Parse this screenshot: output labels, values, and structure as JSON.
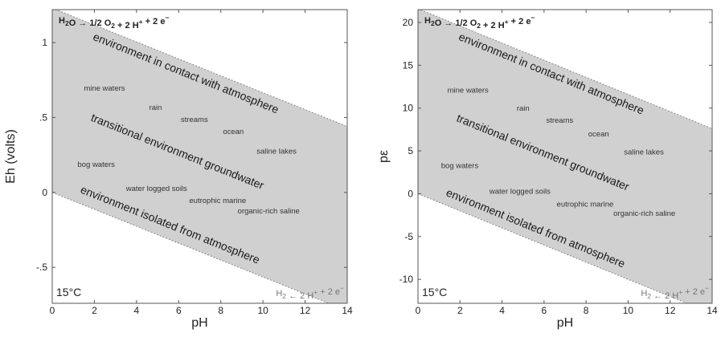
{
  "chart_data": [
    {
      "type": "area",
      "panel": "left",
      "xlabel": "pH",
      "ylabel": "Eh (volts)",
      "xlim": [
        0,
        14
      ],
      "ylim": [
        -0.74,
        1.22
      ],
      "x_ticks": [
        0,
        2,
        4,
        6,
        8,
        10,
        12,
        14
      ],
      "x_tick_labels": [
        "0",
        "2",
        "4",
        "6",
        "8",
        "10",
        "12",
        "14"
      ],
      "y_ticks": [
        -0.5,
        0,
        0.5,
        1
      ],
      "y_tick_labels": [
        "-.5",
        "0",
        ".5",
        "1"
      ],
      "grid": false,
      "stability_field": {
        "upper": {
          "x": [
            0,
            14
          ],
          "y": [
            1.23,
            0.44
          ],
          "label": "H2O → 1/2 O2 + 2 H+ + 2 e−"
        },
        "lower": {
          "x": [
            0,
            14
          ],
          "y": [
            0.0,
            -0.79
          ],
          "label": "H2 ← 2 H+ + 2 e−"
        }
      },
      "temperature": "15°C",
      "environment_labels": [
        {
          "text": "environment in contact with atmosphere",
          "pH": 1.9,
          "value": 1.02
        },
        {
          "text": "transitional environment groundwater",
          "pH": 1.8,
          "value": 0.48
        },
        {
          "text": "environment isolated from atmosphere",
          "pH": 1.3,
          "value": 0.0
        }
      ],
      "examples": [
        {
          "text": "mine waters",
          "pH": 1.5,
          "value": 0.68
        },
        {
          "text": "rain",
          "pH": 4.6,
          "value": 0.55
        },
        {
          "text": "streams",
          "pH": 6.1,
          "value": 0.47
        },
        {
          "text": "ocean",
          "pH": 8.1,
          "value": 0.39
        },
        {
          "text": "saline lakes",
          "pH": 9.7,
          "value": 0.26
        },
        {
          "text": "bog waters",
          "pH": 1.2,
          "value": 0.17
        },
        {
          "text": "water logged soils",
          "pH": 3.5,
          "value": 0.01
        },
        {
          "text": "eutrophic marine",
          "pH": 6.5,
          "value": -0.07
        },
        {
          "text": "organic-rich saline",
          "pH": 8.8,
          "value": -0.14
        }
      ]
    },
    {
      "type": "area",
      "panel": "right",
      "xlabel": "pH",
      "ylabel": "pε",
      "xlim": [
        0,
        14
      ],
      "ylim": [
        -12.8,
        21.5
      ],
      "x_ticks": [
        0,
        2,
        4,
        6,
        8,
        10,
        12,
        14
      ],
      "x_tick_labels": [
        "0",
        "2",
        "4",
        "6",
        "8",
        "10",
        "12",
        "14"
      ],
      "y_ticks": [
        -10,
        -5,
        0,
        5,
        10,
        15,
        20
      ],
      "y_tick_labels": [
        "-10",
        "-5",
        "0",
        "5",
        "10",
        "15",
        "20"
      ],
      "grid": false,
      "stability_field": {
        "upper": {
          "x": [
            0,
            14
          ],
          "y": [
            21.6,
            7.6
          ],
          "label": "H2O → 1/2 O2 + 2 H+ + 2 e−"
        },
        "lower": {
          "x": [
            0,
            14
          ],
          "y": [
            0.0,
            -14.0
          ],
          "label": "H2 ← 2 H+ + 2 e−"
        }
      },
      "temperature": "15°C",
      "environment_labels": [
        {
          "text": "environment in contact with atmosphere",
          "pH": 1.9,
          "value": 18.0
        },
        {
          "text": "transitional environment groundwater",
          "pH": 1.8,
          "value": 8.5
        },
        {
          "text": "environment isolated from atmosphere",
          "pH": 1.3,
          "value": -0.2
        }
      ],
      "examples": [
        {
          "text": "mine waters",
          "pH": 1.4,
          "value": 11.8
        },
        {
          "text": "rain",
          "pH": 4.7,
          "value": 9.7
        },
        {
          "text": "streams",
          "pH": 6.1,
          "value": 8.3
        },
        {
          "text": "ocean",
          "pH": 8.1,
          "value": 6.7
        },
        {
          "text": "saline lakes",
          "pH": 9.8,
          "value": 4.6
        },
        {
          "text": "bog waters",
          "pH": 1.1,
          "value": 3.0
        },
        {
          "text": "water logged soils",
          "pH": 3.4,
          "value": 0.0
        },
        {
          "text": "eutrophic marine",
          "pH": 6.6,
          "value": -1.5
        },
        {
          "text": "organic-rich saline",
          "pH": 9.3,
          "value": -2.6
        }
      ]
    }
  ]
}
